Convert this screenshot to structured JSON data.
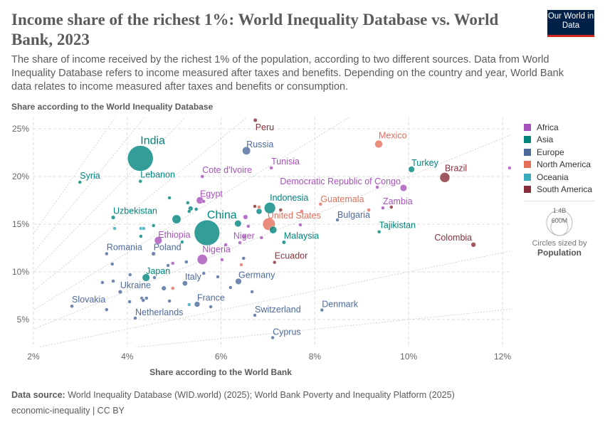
{
  "title": "Income share of the richest 1%: World Inequality Database vs. World Bank, 2023",
  "subtitle": "The share of income received by the richest 1% of the population, according to two different sources. Data from World Inequality Database refers to income measured after taxes and benefits. Depending on the country and year, World Bank data relates to income measured after taxes and benefits or consumption.",
  "logo": "Our World in Data",
  "source_label": "Data source:",
  "source": "World Inequality Database (WID.world) (2025); World Bank Poverty and Inequality Platform (2025)",
  "license": "economic-inequality | CC BY",
  "size_legend": {
    "big": "1.4B",
    "small": "600M",
    "caption": "Circles sized by",
    "variable": "Population"
  },
  "colors": {
    "Africa": "#a652ba",
    "Asia": "#00847e",
    "Europe": "#4c6a9c",
    "North America": "#e56e5a",
    "Oceania": "#38aaba",
    "South America": "#883039"
  },
  "chart_data": {
    "type": "scatter",
    "title": "Income share of the richest 1%: World Inequality Database vs. World Bank, 2023",
    "xlabel": "Share according to the World Bank",
    "ylabel": "Share according to the World Inequality Database",
    "xlim": [
      2,
      12.2
    ],
    "ylim": [
      2.1,
      26.2
    ],
    "xticks": [
      2,
      4,
      6,
      8,
      10,
      12
    ],
    "yticks": [
      5,
      10,
      15,
      20,
      25
    ],
    "tick_suffix": "%",
    "grid": true,
    "legend": "right",
    "ratio_lines": [
      0.5,
      1,
      2,
      3,
      4,
      5,
      6,
      7
    ],
    "legend_entries": [
      "Africa",
      "Asia",
      "Europe",
      "North America",
      "Oceania",
      "South America"
    ],
    "points": [
      {
        "label": "Peru",
        "region": "South America",
        "x": 6.73,
        "y": 25.9,
        "pop": 34
      },
      {
        "label": "Russia",
        "region": "Europe",
        "x": 6.54,
        "y": 22.7,
        "pop": 144
      },
      {
        "label": "India",
        "region": "Asia",
        "x": 4.28,
        "y": 21.9,
        "pop": 1430
      },
      {
        "label": "Tunisia",
        "region": "Africa",
        "x": 7.07,
        "y": 20.9,
        "pop": 12
      },
      {
        "label": "Syria",
        "region": "Asia",
        "x": 2.99,
        "y": 19.4,
        "pop": 23
      },
      {
        "label": "Lebanon",
        "region": "Asia",
        "x": 4.28,
        "y": 19.5,
        "pop": 5
      },
      {
        "label": "Cote d'Ivoire",
        "region": "Africa",
        "x": 5.6,
        "y": 20.0,
        "pop": 29
      },
      {
        "label": "Mexico",
        "region": "North America",
        "x": 9.36,
        "y": 23.4,
        "pop": 128
      },
      {
        "label": "Turkey",
        "region": "Asia",
        "x": 10.06,
        "y": 20.75,
        "pop": 85
      },
      {
        "label": "Brazil",
        "region": "South America",
        "x": 10.77,
        "y": 19.9,
        "pop": 216
      },
      {
        "label": "Democratic Republic of Congo",
        "region": "Africa",
        "x": 9.89,
        "y": 18.8,
        "pop": 102
      },
      {
        "label": "Egypt",
        "region": "Africa",
        "x": 5.55,
        "y": 17.5,
        "pop": 113
      },
      {
        "label": "Indonesia",
        "region": "Asia",
        "x": 7.04,
        "y": 16.7,
        "pop": 278
      },
      {
        "label": "Guatemala",
        "region": "North America",
        "x": 8.12,
        "y": 17.1,
        "pop": 18
      },
      {
        "label": "Zambia",
        "region": "Africa",
        "x": 9.45,
        "y": 16.7,
        "pop": 21
      },
      {
        "label": "Bulgaria",
        "region": "Europe",
        "x": 8.48,
        "y": 15.45,
        "pop": 7
      },
      {
        "label": "Uzbekistan",
        "region": "Asia",
        "x": 3.7,
        "y": 15.7,
        "pop": 36
      },
      {
        "label": "China",
        "region": "Asia",
        "x": 5.7,
        "y": 14.1,
        "pop": 1410
      },
      {
        "label": "United States",
        "region": "North America",
        "x": 7.02,
        "y": 15.0,
        "pop": 340
      },
      {
        "label": "Niger",
        "region": "Africa",
        "x": 6.49,
        "y": 13.7,
        "pop": 27
      },
      {
        "label": "Malaysia",
        "region": "Asia",
        "x": 7.34,
        "y": 13.1,
        "pop": 34
      },
      {
        "label": "Tajikistan",
        "region": "Asia",
        "x": 9.37,
        "y": 14.2,
        "pop": 10
      },
      {
        "label": "Colombia",
        "region": "South America",
        "x": 11.38,
        "y": 12.85,
        "pop": 52
      },
      {
        "label": "Ethiopia",
        "region": "Africa",
        "x": 4.66,
        "y": 13.3,
        "pop": 127
      },
      {
        "label": "Romania",
        "region": "Europe",
        "x": 3.56,
        "y": 11.9,
        "pop": 19
      },
      {
        "label": "Poland",
        "region": "Europe",
        "x": 4.56,
        "y": 11.9,
        "pop": 37
      },
      {
        "label": "Nigeria",
        "region": "Africa",
        "x": 5.6,
        "y": 11.3,
        "pop": 224
      },
      {
        "label": "Ecuador",
        "region": "South America",
        "x": 7.14,
        "y": 11.0,
        "pop": 18
      },
      {
        "label": "Japan",
        "region": "Asia",
        "x": 4.4,
        "y": 9.4,
        "pop": 124
      },
      {
        "label": "Germany",
        "region": "Europe",
        "x": 6.37,
        "y": 9.0,
        "pop": 84
      },
      {
        "label": "Italy",
        "region": "Europe",
        "x": 5.23,
        "y": 8.8,
        "pop": 59
      },
      {
        "label": "Ukraine",
        "region": "Europe",
        "x": 3.85,
        "y": 7.9,
        "pop": 37
      },
      {
        "label": "Slovakia",
        "region": "Europe",
        "x": 2.82,
        "y": 6.4,
        "pop": 5
      },
      {
        "label": "France",
        "region": "Europe",
        "x": 5.49,
        "y": 6.6,
        "pop": 68
      },
      {
        "label": "Netherlands",
        "region": "Europe",
        "x": 4.17,
        "y": 5.15,
        "pop": 18
      },
      {
        "label": "Switzerland",
        "region": "Europe",
        "x": 6.72,
        "y": 5.45,
        "pop": 9
      },
      {
        "label": "Denmark",
        "region": "Europe",
        "x": 8.15,
        "y": 6.0,
        "pop": 6
      },
      {
        "label": "Cyprus",
        "region": "Europe",
        "x": 7.1,
        "y": 3.1,
        "pop": 1
      },
      {
        "region": "Africa",
        "x": 12.15,
        "y": 20.9,
        "pop": 10
      },
      {
        "region": "Asia",
        "x": 4.9,
        "y": 17.76,
        "pop": 10
      },
      {
        "region": "Asia",
        "x": 5.29,
        "y": 17.24,
        "pop": 10
      },
      {
        "region": "Asia",
        "x": 5.35,
        "y": 16.64,
        "pop": 50
      },
      {
        "region": "Asia",
        "x": 5.32,
        "y": 16.34,
        "pop": 10
      },
      {
        "region": "Asia",
        "x": 5.47,
        "y": 16.57,
        "pop": 10
      },
      {
        "region": "Africa",
        "x": 5.63,
        "y": 17.39,
        "pop": 10
      },
      {
        "region": "Asia",
        "x": 5.05,
        "y": 15.52,
        "pop": 172
      },
      {
        "region": "Asia",
        "x": 4.56,
        "y": 14.85,
        "pop": 25
      },
      {
        "region": "Oceania",
        "x": 3.73,
        "y": 14.55,
        "pop": 5
      },
      {
        "region": "Oceania",
        "x": 4.29,
        "y": 14.55,
        "pop": 5
      },
      {
        "region": "Oceania",
        "x": 4.35,
        "y": 14.55,
        "pop": 5
      },
      {
        "region": "Asia",
        "x": 4.29,
        "y": 13.73,
        "pop": 8
      },
      {
        "region": "Asia",
        "x": 5.17,
        "y": 13.13,
        "pop": 8
      },
      {
        "region": "Asia",
        "x": 6.36,
        "y": 15.07,
        "pop": 99
      },
      {
        "region": "Africa",
        "x": 6.52,
        "y": 15.75,
        "pop": 50
      },
      {
        "region": "Asia",
        "x": 6.81,
        "y": 16.34,
        "pop": 72
      },
      {
        "region": "South America",
        "x": 6.72,
        "y": 16.87,
        "pop": 5
      },
      {
        "region": "North America",
        "x": 6.81,
        "y": 16.79,
        "pop": 5
      },
      {
        "region": "South America",
        "x": 7.27,
        "y": 16.49,
        "pop": 5
      },
      {
        "region": "Asia",
        "x": 7.11,
        "y": 14.4,
        "pop": 117
      },
      {
        "region": "Africa",
        "x": 6.4,
        "y": 13.06,
        "pop": 20
      },
      {
        "region": "Africa",
        "x": 6.86,
        "y": 13.58,
        "pop": 10
      },
      {
        "region": "Africa",
        "x": 6.58,
        "y": 14.78,
        "pop": 10
      },
      {
        "region": "Africa",
        "x": 6.1,
        "y": 12.84,
        "pop": 8
      },
      {
        "region": "Africa",
        "x": 6.02,
        "y": 11.27,
        "pop": 8
      },
      {
        "region": "Europe",
        "x": 6.48,
        "y": 11.42,
        "pop": 5
      },
      {
        "region": "North America",
        "x": 6.43,
        "y": 10.75,
        "pop": 5
      },
      {
        "region": "Africa",
        "x": 4.97,
        "y": 10.9,
        "pop": 5
      },
      {
        "region": "Europe",
        "x": 4.87,
        "y": 10.67,
        "pop": 5
      },
      {
        "region": "Europe",
        "x": 5.26,
        "y": 11.04,
        "pop": 5
      },
      {
        "region": "Europe",
        "x": 3.68,
        "y": 10.82,
        "pop": 5
      },
      {
        "region": "Europe",
        "x": 4.06,
        "y": 9.7,
        "pop": 5
      },
      {
        "region": "Europe",
        "x": 4.58,
        "y": 9.4,
        "pop": 5
      },
      {
        "region": "Europe",
        "x": 5.93,
        "y": 9.48,
        "pop": 5
      },
      {
        "region": "Europe",
        "x": 5.63,
        "y": 9.85,
        "pop": 5
      },
      {
        "region": "Europe",
        "x": 3.47,
        "y": 8.88,
        "pop": 5
      },
      {
        "region": "Europe",
        "x": 3.7,
        "y": 9.03,
        "pop": 5
      },
      {
        "region": "Europe",
        "x": 4.78,
        "y": 8.28,
        "pop": 48
      },
      {
        "region": "North America",
        "x": 4.97,
        "y": 8.28,
        "pop": 25
      },
      {
        "region": "Europe",
        "x": 6.2,
        "y": 8.36,
        "pop": 5
      },
      {
        "region": "Europe",
        "x": 6.66,
        "y": 7.91,
        "pop": 5
      },
      {
        "region": "Europe",
        "x": 4.05,
        "y": 6.87,
        "pop": 5
      },
      {
        "region": "Europe",
        "x": 4.31,
        "y": 7.24,
        "pop": 5
      },
      {
        "region": "Europe",
        "x": 4.34,
        "y": 7.01,
        "pop": 5
      },
      {
        "region": "Europe",
        "x": 4.41,
        "y": 7.24,
        "pop": 5
      },
      {
        "region": "Europe",
        "x": 4.9,
        "y": 6.94,
        "pop": 5
      },
      {
        "region": "Oceania",
        "x": 5.32,
        "y": 6.57,
        "pop": 26
      },
      {
        "region": "Europe",
        "x": 5.78,
        "y": 6.34,
        "pop": 5
      },
      {
        "region": "Europe",
        "x": 3.56,
        "y": 6.04,
        "pop": 5
      },
      {
        "region": "Africa",
        "x": 7.69,
        "y": 14.93,
        "pop": 5
      },
      {
        "region": "North America",
        "x": 9.15,
        "y": 16.49,
        "pop": 5
      },
      {
        "region": "Africa",
        "x": 9.33,
        "y": 18.88,
        "pop": 5
      },
      {
        "region": "South America",
        "x": 9.63,
        "y": 16.79,
        "pop": 5
      },
      {
        "region": "North America",
        "x": 7.72,
        "y": 16.34,
        "pop": 5
      }
    ]
  }
}
